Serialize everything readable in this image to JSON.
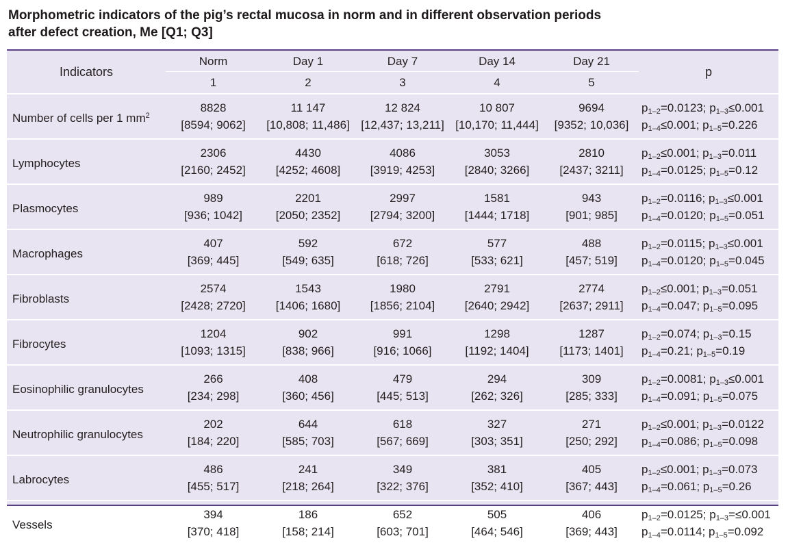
{
  "title": {
    "line1": "Morphometric indicators of the pig’s rectal mucosa in norm and in different observation periods",
    "line2": "after defect creation, Me [Q1; Q3]"
  },
  "header": {
    "indicators": "Indicators",
    "p": "p",
    "groups": [
      {
        "label": "Norm",
        "number": "1"
      },
      {
        "label": "Day 1",
        "number": "2"
      },
      {
        "label": "Day 7",
        "number": "3"
      },
      {
        "label": "Day 14",
        "number": "4"
      },
      {
        "label": "Day 21",
        "number": "5"
      }
    ]
  },
  "rows": [
    {
      "indicator": "Number of cells per 1 mm",
      "indicator_sup": "2",
      "values": [
        [
          "8828",
          "[8594; 9062]"
        ],
        [
          "11 147",
          "[10,808; 11,486]"
        ],
        [
          "12 824",
          "[12,437; 13,211]"
        ],
        [
          "10 807",
          "[10,170; 11,444]"
        ],
        [
          "9694",
          "[9352; 10,036]"
        ]
      ],
      "p": [
        [
          {
            "s": "1–2",
            "op": "=",
            "v": "0.0123"
          },
          {
            "s": "1–3",
            "op": "≤",
            "v": "0.001"
          }
        ],
        [
          {
            "s": "1–4",
            "op": "≤",
            "v": "0.001"
          },
          {
            "s": "1–5",
            "op": "=",
            "v": "0.226"
          }
        ]
      ]
    },
    {
      "indicator": "Lymphocytes",
      "values": [
        [
          "2306",
          "[2160; 2452]"
        ],
        [
          "4430",
          "[4252; 4608]"
        ],
        [
          "4086",
          "[3919; 4253]"
        ],
        [
          "3053",
          "[2840; 3266]"
        ],
        [
          "2810",
          "[2437; 3211]"
        ]
      ],
      "p": [
        [
          {
            "s": "1–2",
            "op": "≤",
            "v": "0.001"
          },
          {
            "s": "1–3",
            "op": "=",
            "v": "0.011"
          }
        ],
        [
          {
            "s": "1–4",
            "op": "=",
            "v": "0.0125"
          },
          {
            "s": "1–5",
            "op": "=",
            "v": "0.12"
          }
        ]
      ]
    },
    {
      "indicator": "Plasmocytes",
      "values": [
        [
          "989",
          "[936; 1042]"
        ],
        [
          "2201",
          "[2050; 2352]"
        ],
        [
          "2997",
          "[2794; 3200]"
        ],
        [
          "1581",
          "[1444; 1718]"
        ],
        [
          "943",
          "[901; 985]"
        ]
      ],
      "p": [
        [
          {
            "s": "1–2",
            "op": "=",
            "v": "0.0116"
          },
          {
            "s": "1–3",
            "op": "≤",
            "v": "0.001"
          }
        ],
        [
          {
            "s": "1–4",
            "op": "=",
            "v": "0.0120"
          },
          {
            "s": "1–5",
            "op": "=",
            "v": "0.051"
          }
        ]
      ]
    },
    {
      "indicator": "Macrophages",
      "values": [
        [
          "407",
          "[369; 445]"
        ],
        [
          "592",
          "[549; 635]"
        ],
        [
          "672",
          "[618; 726]"
        ],
        [
          "577",
          "[533; 621]"
        ],
        [
          "488",
          "[457; 519]"
        ]
      ],
      "p": [
        [
          {
            "s": "1–2",
            "op": "=",
            "v": "0.0115"
          },
          {
            "s": "1–3",
            "op": "≤",
            "v": "0.001"
          }
        ],
        [
          {
            "s": "1–4",
            "op": "=",
            "v": "0.0120"
          },
          {
            "s": "1–5",
            "op": "=",
            "v": "0.045"
          }
        ]
      ]
    },
    {
      "indicator": "Fibroblasts",
      "values": [
        [
          "2574",
          "[2428; 2720]"
        ],
        [
          "1543",
          "[1406; 1680]"
        ],
        [
          "1980",
          "[1856; 2104]"
        ],
        [
          "2791",
          "[2640; 2942]"
        ],
        [
          "2774",
          "[2637; 2911]"
        ]
      ],
      "p": [
        [
          {
            "s": "1–2",
            "op": "≤",
            "v": "0.001"
          },
          {
            "s": "1–3",
            "op": "=",
            "v": "0.051"
          }
        ],
        [
          {
            "s": "1–4",
            "op": "=",
            "v": "0.047"
          },
          {
            "s": "1–5",
            "op": "=",
            "v": "0.095"
          }
        ]
      ]
    },
    {
      "indicator": "Fibrocytes",
      "values": [
        [
          "1204",
          "[1093; 1315]"
        ],
        [
          "902",
          "[838; 966]"
        ],
        [
          "991",
          "[916; 1066]"
        ],
        [
          "1298",
          "[1192; 1404]"
        ],
        [
          "1287",
          "[1173; 1401]"
        ]
      ],
      "p": [
        [
          {
            "s": "1–2",
            "op": "=",
            "v": "0.074"
          },
          {
            "s": "1–3",
            "op": "=",
            "v": "0.15"
          }
        ],
        [
          {
            "s": "1–4",
            "op": "=",
            "v": "0.21"
          },
          {
            "s": "1–5",
            "op": "=",
            "v": "0.19"
          }
        ]
      ]
    },
    {
      "indicator": "Eosinophilic granulocytes",
      "values": [
        [
          "266",
          "[234; 298]"
        ],
        [
          "408",
          "[360; 456]"
        ],
        [
          "479",
          "[445; 513]"
        ],
        [
          "294",
          "[262; 326]"
        ],
        [
          "309",
          "[285; 333]"
        ]
      ],
      "p": [
        [
          {
            "s": "1–2",
            "op": "=",
            "v": "0.0081"
          },
          {
            "s": "1–3",
            "op": "≤",
            "v": "0.001"
          }
        ],
        [
          {
            "s": "1–4",
            "op": "=",
            "v": "0.091"
          },
          {
            "s": "1–5",
            "op": "=",
            "v": "0.075"
          }
        ]
      ]
    },
    {
      "indicator": "Neutrophilic granulocytes",
      "values": [
        [
          "202",
          "[184; 220]"
        ],
        [
          "644",
          "[585; 703]"
        ],
        [
          "618",
          "[567; 669]"
        ],
        [
          "327",
          "[303; 351]"
        ],
        [
          "271",
          "[250; 292]"
        ]
      ],
      "p": [
        [
          {
            "s": "1–2",
            "op": "≤",
            "v": "0.001"
          },
          {
            "s": "1–3",
            "op": "=",
            "v": "0.0122"
          }
        ],
        [
          {
            "s": "1–4",
            "op": "=",
            "v": "0.086"
          },
          {
            "s": "1–5",
            "op": "=",
            "v": "0.098"
          }
        ]
      ]
    },
    {
      "indicator": "Labrocytes",
      "values": [
        [
          "486",
          "[455; 517]"
        ],
        [
          "241",
          "[218; 264]"
        ],
        [
          "349",
          "[322; 376]"
        ],
        [
          "381",
          "[352; 410]"
        ],
        [
          "405",
          "[367; 443]"
        ]
      ],
      "p": [
        [
          {
            "s": "1–2",
            "op": "≤",
            "v": "0.001"
          },
          {
            "s": "1–3",
            "op": "=",
            "v": "0.073"
          }
        ],
        [
          {
            "s": "1–4",
            "op": "=",
            "v": "0.061"
          },
          {
            "s": "1–5",
            "op": "=",
            "v": "0.26"
          }
        ]
      ]
    },
    {
      "indicator": "Vessels",
      "values": [
        [
          "394",
          "[370; 418]"
        ],
        [
          "186",
          "[158; 214]"
        ],
        [
          "652",
          "[603; 701]"
        ],
        [
          "505",
          "[464; 546]"
        ],
        [
          "406",
          "[369; 443]"
        ]
      ],
      "p": [
        [
          {
            "s": "1–2",
            "op": "=",
            "v": "0.0125"
          },
          {
            "s": "1–3",
            "op": "=≤",
            "v": "0.001"
          }
        ],
        [
          {
            "s": "1–4",
            "op": "=",
            "v": "0.0114"
          },
          {
            "s": "1–5",
            "op": "=",
            "v": "0.092"
          }
        ]
      ]
    }
  ]
}
